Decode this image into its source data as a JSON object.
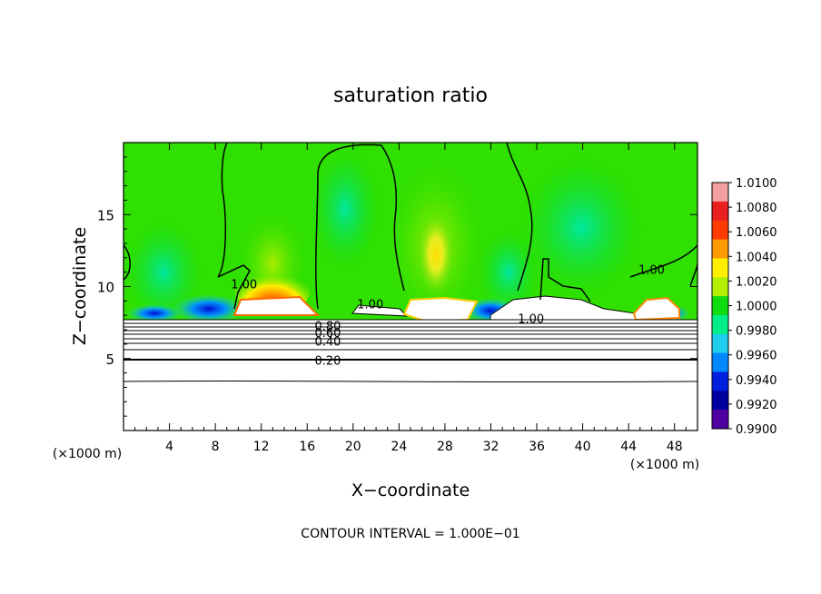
{
  "chart_data": {
    "type": "heatmap",
    "title": "saturation ratio",
    "xlabel": "X−coordinate",
    "ylabel": "Z−coordinate",
    "x_unit_left": "(×1000 m)",
    "x_unit_right": "(×1000 m)",
    "footer": "CONTOUR INTERVAL = 1.000E−01",
    "xlim": [
      0,
      50
    ],
    "ylim": [
      0,
      20
    ],
    "x_ticks": [
      4,
      8,
      12,
      16,
      20,
      24,
      28,
      32,
      36,
      40,
      44,
      48
    ],
    "y_ticks": [
      5,
      10,
      15
    ],
    "colorbar": {
      "range": [
        0.99,
        1.01
      ],
      "ticks": [
        "1.0100",
        "1.0080",
        "1.0060",
        "1.0040",
        "1.0020",
        "1.0000",
        "0.9980",
        "0.9960",
        "0.9940",
        "0.9920",
        "0.9900"
      ],
      "colors": [
        "#f4a0a0",
        "#e82020",
        "#ff3c00",
        "#ff9900",
        "#ffee00",
        "#b0f000",
        "#10dd10",
        "#00ee88",
        "#20ccee",
        "#0088ff",
        "#0020e0",
        "#0000a0",
        "#5000a0"
      ]
    },
    "contour_labels": [
      {
        "text": "1.00",
        "x": 10.5,
        "z": 10.2
      },
      {
        "text": "1.00",
        "x": 21.5,
        "z": 8.8
      },
      {
        "text": "1.00",
        "x": 35.5,
        "z": 7.8
      },
      {
        "text": "1.00",
        "x": 46.0,
        "z": 11.2
      },
      {
        "text": "0.80",
        "x": 17.8,
        "z": 7.3
      },
      {
        "text": "0.60",
        "x": 17.8,
        "z": 6.8
      },
      {
        "text": "0.40",
        "x": 17.8,
        "z": 6.2
      },
      {
        "text": "0.20",
        "x": 17.8,
        "z": 4.9
      }
    ]
  }
}
